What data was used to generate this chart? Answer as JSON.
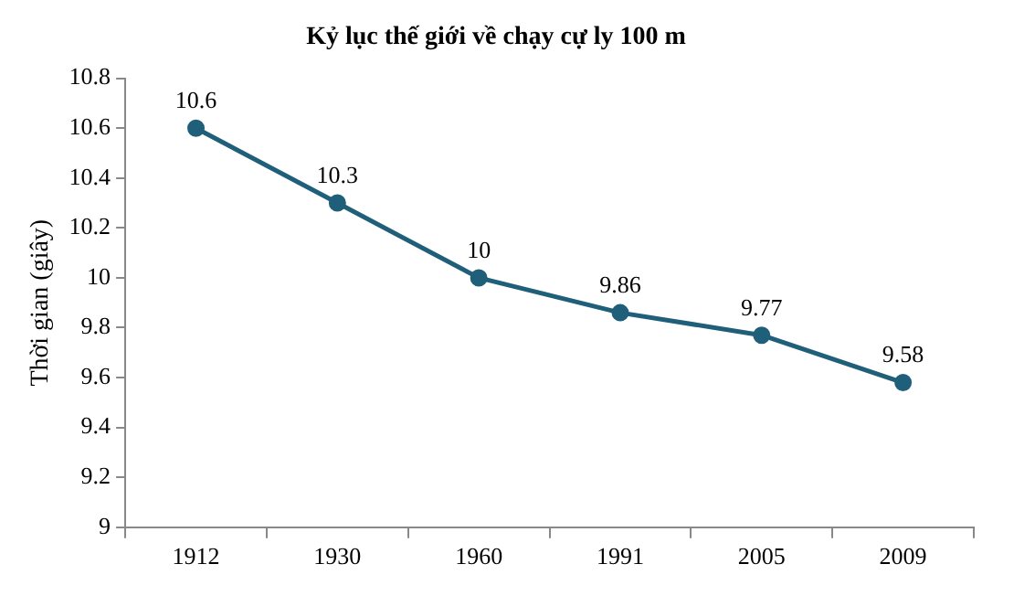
{
  "chart_data": {
    "type": "line",
    "title": "Kỷ lục thế giới về chạy cự ly 100 m",
    "ylabel": "Thời gian (giây)",
    "categories": [
      "1912",
      "1930",
      "1960",
      "1991",
      "2005",
      "2009"
    ],
    "series": [
      {
        "color": "#1f5f7a",
        "values": [
          10.6,
          10.3,
          10,
          9.86,
          9.77,
          9.58
        ]
      }
    ],
    "ylim": [
      9,
      10.8
    ],
    "yticks": [
      9,
      9.2,
      9.4,
      9.6,
      9.8,
      10,
      10.2,
      10.4,
      10.6,
      10.8
    ],
    "grid": false,
    "legend": false,
    "marker": "circle",
    "line_style": "solid",
    "data_labels": true
  }
}
